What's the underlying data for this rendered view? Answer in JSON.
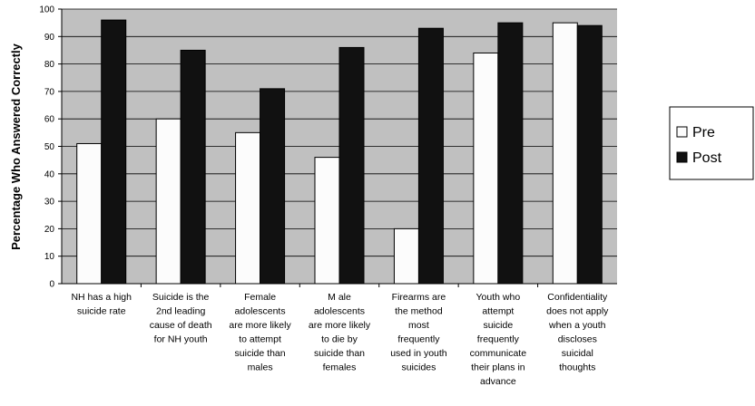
{
  "chart_data": {
    "type": "bar",
    "title": "",
    "xlabel": "",
    "ylabel": "Percentage Who Answered Correctly",
    "ylim": [
      0,
      100
    ],
    "yticks": [
      0,
      10,
      20,
      30,
      40,
      50,
      60,
      70,
      80,
      90,
      100
    ],
    "grid": true,
    "legend_position": "right",
    "categories": [
      [
        "NH has a high",
        "suicide rate"
      ],
      [
        "Suicide is the",
        "2nd leading",
        "cause of death",
        "for NH youth"
      ],
      [
        "Female",
        "adolescents",
        "are more likely",
        "to attempt",
        "suicide than",
        "males"
      ],
      [
        "M ale",
        "adolescents",
        "are more likely",
        "to die by",
        "suicide than",
        "females"
      ],
      [
        "Firearms are",
        "the method",
        "most",
        "frequently",
        "used in youth",
        "suicides"
      ],
      [
        "Youth who",
        "attempt",
        "suicide",
        "frequently",
        "communicate",
        "their plans in",
        "advance"
      ],
      [
        "Confidentiality",
        "does not apply",
        "when a youth",
        "discloses",
        "suicidal",
        "thoughts"
      ]
    ],
    "series": [
      {
        "name": "Pre",
        "color": "#fcfcfc",
        "values": [
          51,
          60,
          55,
          46,
          20,
          84,
          95
        ]
      },
      {
        "name": "Post",
        "color": "#111111",
        "values": [
          96,
          85,
          71,
          86,
          93,
          95,
          94
        ]
      }
    ],
    "colors": {
      "plot_background": "#c0c0c0",
      "gridline": "#000000",
      "bar_stroke": "#000000"
    }
  }
}
